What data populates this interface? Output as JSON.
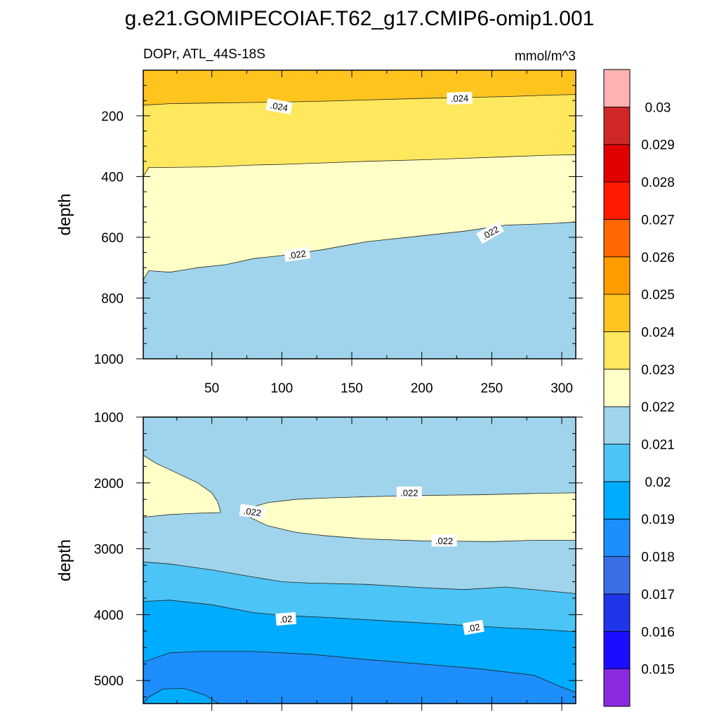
{
  "chart_data": {
    "type": "contour",
    "title": "g.e21.GOMIPECOIAF.T62_g17.CMIP6-omip1.001",
    "subtitle_left": "DOPr, ATL_44S-18S",
    "subtitle_right": "mmol/m^3",
    "ylabel": "depth",
    "xlim": [
      1,
      310
    ],
    "x_ticks": [
      50,
      100,
      150,
      200,
      250,
      300
    ],
    "x_tick_labels": [
      "50",
      "100",
      "150",
      "200",
      "250",
      "300"
    ],
    "colorbar": {
      "levels": [
        0.015,
        0.016,
        0.017,
        0.018,
        0.019,
        0.02,
        0.021,
        0.022,
        0.023,
        0.024,
        0.025,
        0.026,
        0.027,
        0.028,
        0.029,
        0.03
      ],
      "labels": [
        "0.015",
        "0.016",
        "0.017",
        "0.018",
        "0.019",
        "0.02",
        "0.021",
        "0.022",
        "0.023",
        "0.024",
        "0.025",
        "0.026",
        "0.027",
        "0.028",
        "0.029",
        "0.03"
      ],
      "colors": [
        "#8a2be2",
        "#1b0dff",
        "#2035e8",
        "#3a6ee6",
        "#1e8eff",
        "#00acff",
        "#4cc4f5",
        "#9fd4ec",
        "#ffffc8",
        "#ffe85e",
        "#ffc51e",
        "#ff9c00",
        "#ff6800",
        "#ff1a00",
        "#e00000",
        "#d02828",
        "#ffb2b2"
      ]
    },
    "panels": [
      {
        "name": "upper",
        "ylim": [
          1000,
          50
        ],
        "y_ticks": [
          200,
          400,
          600,
          800,
          1000
        ],
        "y_tick_labels": [
          "200",
          "400",
          "600",
          "800",
          "1000"
        ],
        "show_x_labels": true,
        "background_color": "#ffc51e",
        "regions": [
          {
            "level": ">0.024",
            "color": "#ffc51e",
            "boundary": []
          },
          {
            "level": "0.023-0.024",
            "color": "#ffe85e",
            "boundary": [
              [
                1,
                165
              ],
              [
                20,
                160
              ],
              [
                50,
                158
              ],
              [
                80,
                156
              ],
              [
                100,
                155
              ],
              [
                130,
                152
              ],
              [
                160,
                148
              ],
              [
                200,
                143
              ],
              [
                230,
                140
              ],
              [
                260,
                137
              ],
              [
                290,
                132
              ],
              [
                310,
                130
              ]
            ]
          },
          {
            "level": "0.022-0.023",
            "color": "#ffffc8",
            "boundary": [
              [
                1,
                400
              ],
              [
                5,
                370
              ],
              [
                20,
                370
              ],
              [
                50,
                368
              ],
              [
                80,
                362
              ],
              [
                100,
                360
              ],
              [
                130,
                355
              ],
              [
                160,
                350
              ],
              [
                200,
                345
              ],
              [
                230,
                340
              ],
              [
                260,
                335
              ],
              [
                290,
                330
              ],
              [
                310,
                328
              ]
            ]
          },
          {
            "level": "0.021-0.022",
            "color": "#9fd4ec",
            "boundary": [
              [
                1,
                740
              ],
              [
                5,
                710
              ],
              [
                20,
                715
              ],
              [
                40,
                700
              ],
              [
                60,
                690
              ],
              [
                80,
                670
              ],
              [
                100,
                660
              ],
              [
                130,
                640
              ],
              [
                160,
                615
              ],
              [
                200,
                595
              ],
              [
                230,
                580
              ],
              [
                260,
                560
              ],
              [
                290,
                555
              ],
              [
                310,
                550
              ]
            ]
          }
        ],
        "contour_labels": [
          {
            "text": ".024",
            "x": 98,
            "y": 170,
            "angle": 10
          },
          {
            "text": ".024",
            "x": 227,
            "y": 143,
            "angle": -2
          },
          {
            "text": ".022",
            "x": 111,
            "y": 657,
            "angle": -8
          },
          {
            "text": ".022",
            "x": 249,
            "y": 585,
            "angle": -30
          }
        ]
      },
      {
        "name": "lower",
        "ylim": [
          5350,
          1000
        ],
        "y_ticks": [
          1000,
          2000,
          3000,
          4000,
          5000
        ],
        "y_tick_labels": [
          "1000",
          "2000",
          "3000",
          "4000",
          "5000"
        ],
        "show_x_labels": false,
        "background_color": "#9fd4ec",
        "regions": [
          {
            "level": "0.022-0.023",
            "color": "#ffffc8",
            "closed": true,
            "boundary": [
              [
                1,
                1580
              ],
              [
                10,
                1700
              ],
              [
                25,
                1850
              ],
              [
                40,
                2000
              ],
              [
                50,
                2150
              ],
              [
                54,
                2280
              ],
              [
                56,
                2410
              ],
              [
                56,
                2450
              ],
              [
                40,
                2460
              ],
              [
                20,
                2480
              ],
              [
                1,
                2520
              ]
            ]
          },
          {
            "level": "0.022-0.023",
            "color": "#ffffc8",
            "closed": true,
            "boundary": [
              [
                70,
                2420
              ],
              [
                90,
                2300
              ],
              [
                110,
                2250
              ],
              [
                130,
                2230
              ],
              [
                160,
                2210
              ],
              [
                200,
                2190
              ],
              [
                240,
                2180
              ],
              [
                280,
                2160
              ],
              [
                310,
                2150
              ],
              [
                310,
                2870
              ],
              [
                280,
                2870
              ],
              [
                250,
                2890
              ],
              [
                200,
                2880
              ],
              [
                160,
                2850
              ],
              [
                130,
                2800
              ],
              [
                110,
                2750
              ],
              [
                90,
                2650
              ],
              [
                75,
                2500
              ]
            ]
          },
          {
            "level": "0.020-0.021",
            "color": "#4cc4f5",
            "boundary": [
              [
                1,
                3200
              ],
              [
                20,
                3230
              ],
              [
                50,
                3320
              ],
              [
                80,
                3430
              ],
              [
                100,
                3500
              ],
              [
                120,
                3520
              ],
              [
                160,
                3540
              ],
              [
                200,
                3590
              ],
              [
                230,
                3620
              ],
              [
                260,
                3580
              ],
              [
                290,
                3640
              ],
              [
                310,
                3680
              ]
            ]
          },
          {
            "level": "0.019-0.020",
            "color": "#00acff",
            "boundary": [
              [
                1,
                3800
              ],
              [
                20,
                3780
              ],
              [
                50,
                3850
              ],
              [
                80,
                3970
              ],
              [
                100,
                4010
              ],
              [
                140,
                4050
              ],
              [
                180,
                4100
              ],
              [
                220,
                4150
              ],
              [
                260,
                4200
              ],
              [
                290,
                4230
              ],
              [
                310,
                4260
              ]
            ]
          },
          {
            "level": "0.018-0.019",
            "color": "#1e8eff",
            "boundary": [
              [
                1,
                4720
              ],
              [
                20,
                4580
              ],
              [
                40,
                4560
              ],
              [
                80,
                4560
              ],
              [
                120,
                4600
              ],
              [
                160,
                4680
              ],
              [
                200,
                4750
              ],
              [
                240,
                4820
              ],
              [
                280,
                4920
              ],
              [
                300,
                5100
              ],
              [
                310,
                5180
              ]
            ]
          },
          {
            "level": "0.019-0.020",
            "color": "#00acff",
            "closed": true,
            "boundary": [
              [
                1,
                5350
              ],
              [
                5,
                5250
              ],
              [
                15,
                5130
              ],
              [
                30,
                5120
              ],
              [
                45,
                5220
              ],
              [
                55,
                5350
              ]
            ]
          }
        ],
        "contour_labels": [
          {
            "text": ".022",
            "x": 79,
            "y": 2440,
            "angle": 8
          },
          {
            "text": ".022",
            "x": 191,
            "y": 2150,
            "angle": 0
          },
          {
            "text": ".022",
            "x": 216,
            "y": 2880,
            "angle": 0
          },
          {
            "text": ".02",
            "x": 103,
            "y": 4070,
            "angle": -5
          },
          {
            "text": ".02",
            "x": 237,
            "y": 4200,
            "angle": -10
          }
        ]
      }
    ]
  }
}
